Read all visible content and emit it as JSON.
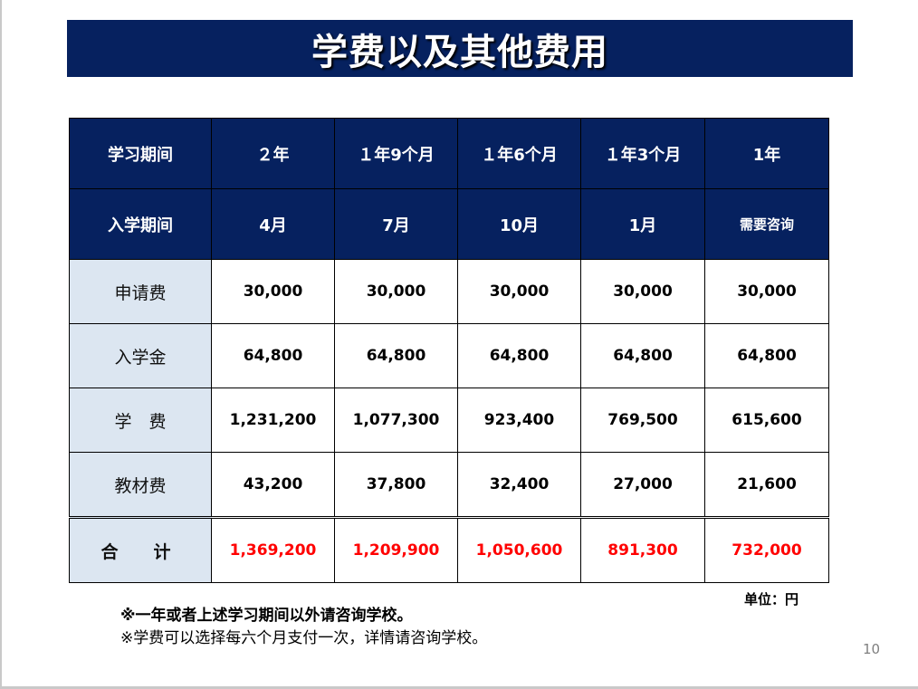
{
  "title": "学费以及其他费用",
  "table": {
    "study_period": {
      "label": "学习期间",
      "values": [
        "２年",
        "１年9个月",
        "１年6个月",
        "１年3个月",
        "1年"
      ]
    },
    "enroll_period": {
      "label": "入学期间",
      "values": [
        "4月",
        "7月",
        "10月",
        "1月",
        "需要咨询"
      ]
    },
    "rows": [
      {
        "label": "申请费",
        "values": [
          "30,000",
          "30,000",
          "30,000",
          "30,000",
          "30,000"
        ]
      },
      {
        "label": "入学金",
        "values": [
          "64,800",
          "64,800",
          "64,800",
          "64,800",
          "64,800"
        ]
      },
      {
        "label": "学　费",
        "values": [
          "1,231,200",
          "1,077,300",
          "923,400",
          "769,500",
          "615,600"
        ]
      },
      {
        "label": "教材费",
        "values": [
          "43,200",
          "37,800",
          "32,400",
          "27,000",
          "21,600"
        ]
      }
    ],
    "total": {
      "label": "合　计",
      "values": [
        "1,369,200",
        "1,209,900",
        "1,050,600",
        "891,300",
        "732,000"
      ]
    }
  },
  "unit": "单位：円",
  "notes": [
    "※一年或者上述学习期间以外请咨询学校。",
    "※学费可以选择每六个月支付一次，详情请咨询学校。"
  ],
  "page_number": "10",
  "colors": {
    "header_bg": "#06215f",
    "label_bg": "#dce6f1",
    "total_text": "#ff0000"
  }
}
